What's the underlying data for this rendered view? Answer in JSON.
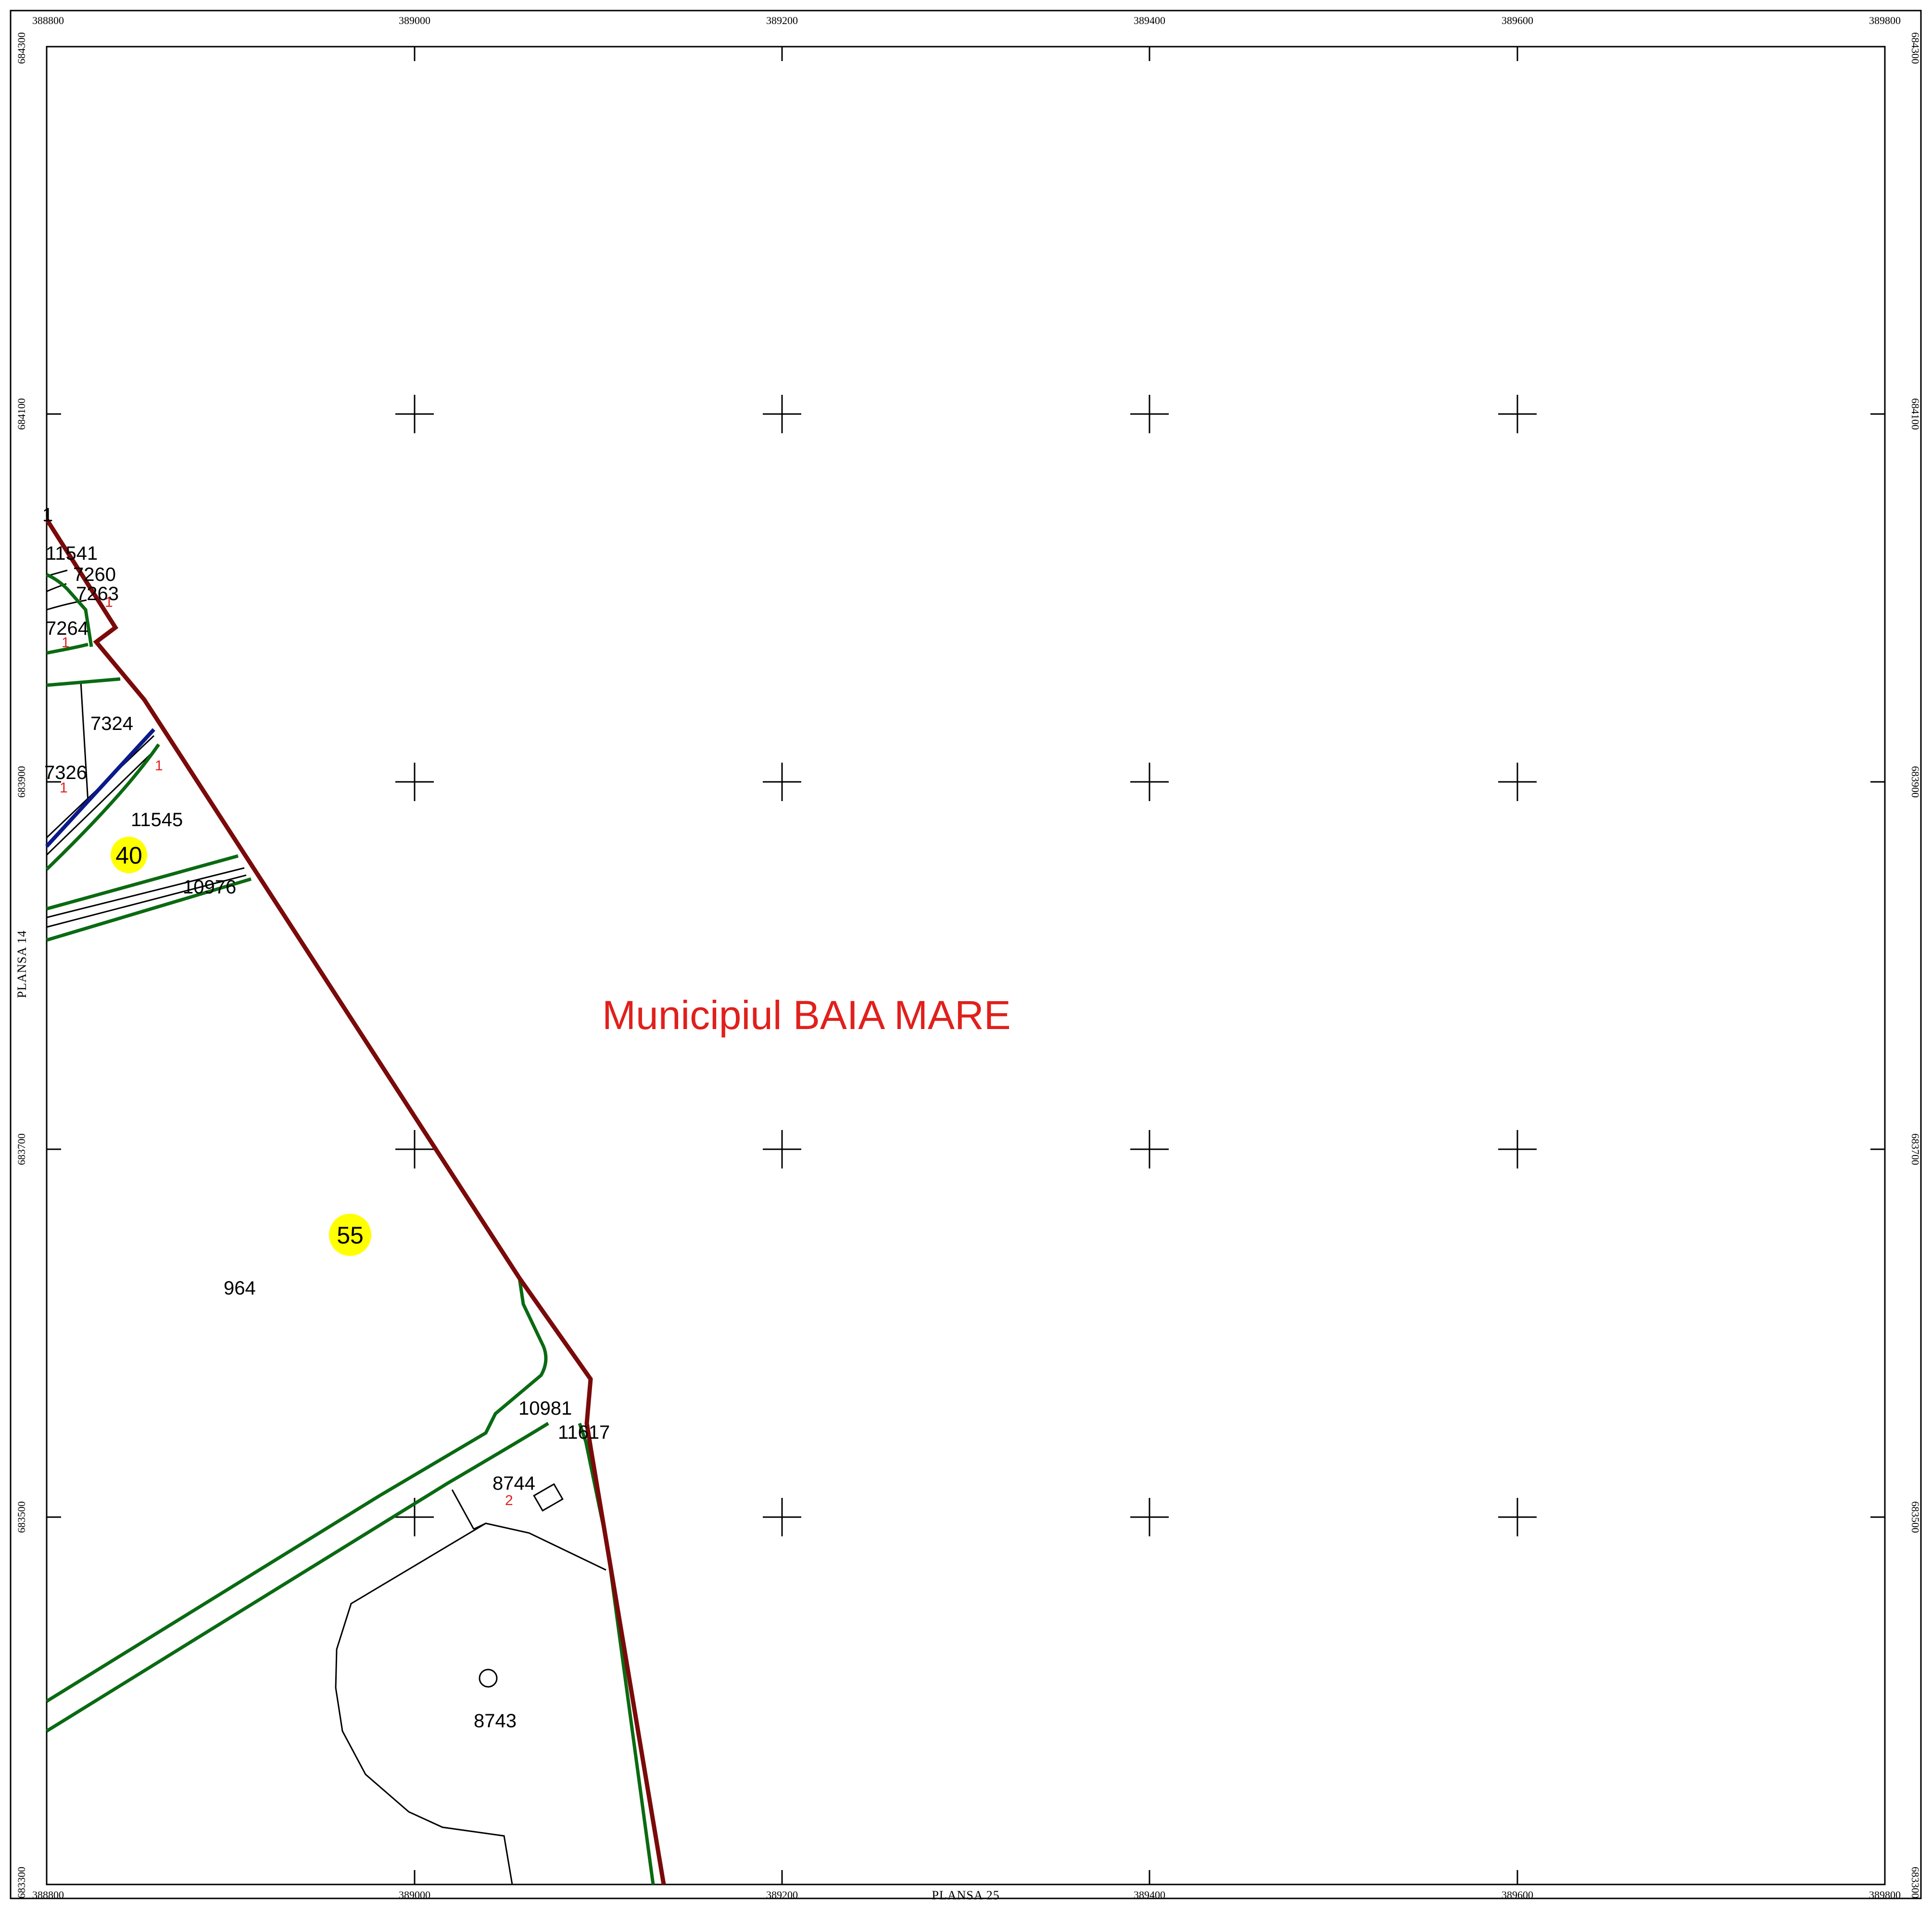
{
  "map": {
    "title": "Municipiul BAIA MARE",
    "sheet_left": "PLANSA 14",
    "sheet_bottom": "PLANSA 25",
    "x_ticks": [
      "388800",
      "389000",
      "389200",
      "389400",
      "389600",
      "389800"
    ],
    "y_ticks": [
      "684300",
      "684100",
      "683900",
      "683700",
      "683500",
      "683300"
    ],
    "parcels": {
      "p11541": "11541",
      "p7260": "7260",
      "p7263": "7263",
      "p7264": "7264",
      "p7324": "7324",
      "p7326": "7326",
      "p11545": "11545",
      "p10976": "10976",
      "p964": "964",
      "p10981": "10981",
      "p11617": "11617",
      "p8744": "8744",
      "p8743": "8743",
      "p1_top": "1"
    },
    "markers": {
      "m7264": "1",
      "m7326": "1",
      "m7260": "1",
      "m_boundary": "1",
      "m8744": "2"
    },
    "badges": {
      "b40": "40",
      "b55": "55"
    },
    "colors": {
      "boundary": "#7a0a0a",
      "road": "#0a6a12",
      "water": "#0a1a8a",
      "label_red": "#e0201c",
      "badge": "#ffff00"
    }
  }
}
